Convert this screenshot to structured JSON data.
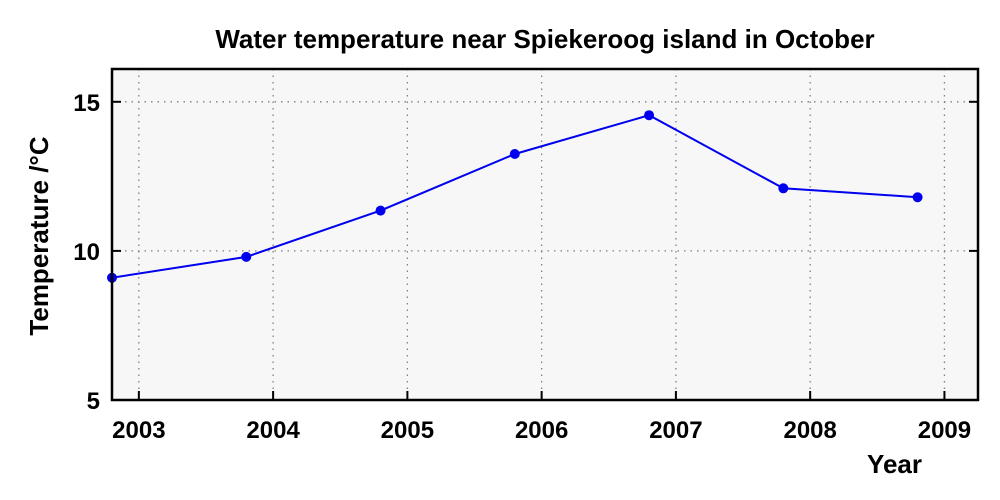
{
  "chart_data": {
    "type": "line",
    "title": "Water temperature near Spiekeroog island in October",
    "xlabel": "Year",
    "ylabel": "Temperature /°C",
    "x_ticks": [
      "2003",
      "2004",
      "2005",
      "2006",
      "2007",
      "2008",
      "2009"
    ],
    "y_ticks": [
      "5",
      "10",
      "15"
    ],
    "xlim": [
      2002.8,
      2009.25
    ],
    "ylim": [
      5,
      16.1
    ],
    "grid": true,
    "series": [
      {
        "color": "#0000ee",
        "points": [
          {
            "x": 2002.8,
            "y": 9.1
          },
          {
            "x": 2003.8,
            "y": 9.8
          },
          {
            "x": 2004.8,
            "y": 11.35
          },
          {
            "x": 2005.8,
            "y": 13.25
          },
          {
            "x": 2006.8,
            "y": 14.55
          },
          {
            "x": 2007.8,
            "y": 12.1
          },
          {
            "x": 2008.8,
            "y": 11.8
          }
        ]
      }
    ]
  }
}
